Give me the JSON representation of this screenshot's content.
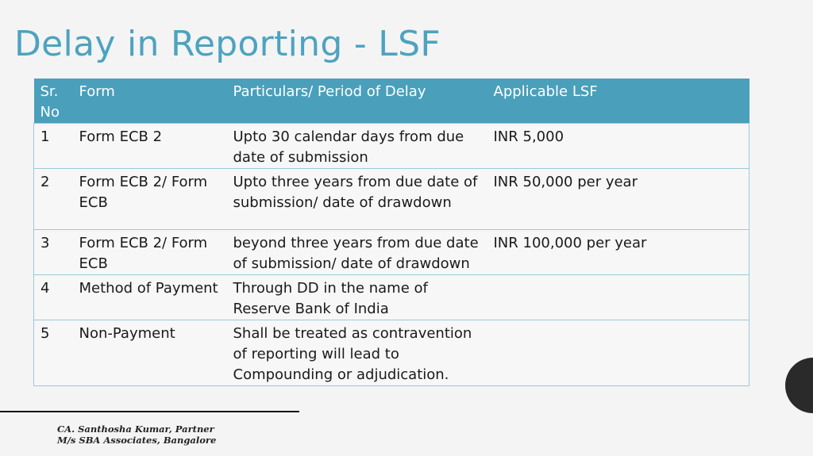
{
  "slide": {
    "title": "Delay in Reporting - LSF"
  },
  "table": {
    "headers": [
      "Sr. No",
      "Form",
      "Particulars/ Period of Delay",
      "Applicable LSF"
    ],
    "rows": [
      [
        "1",
        "Form ECB 2",
        "Upto 30 calendar days from due date of submission",
        "INR 5,000"
      ],
      [
        "2",
        "Form ECB 2/ Form ECB",
        "Upto three years from due date of submission/ date of drawdown",
        "INR 50,000 per year"
      ],
      [
        "3",
        "Form ECB 2/ Form ECB",
        "beyond three years from due date of submission/ date of drawdown",
        "INR 100,000 per year"
      ],
      [
        "4",
        "Method of Payment",
        "Through DD in the name of Reserve Bank of India",
        ""
      ],
      [
        "5",
        "Non-Payment",
        "Shall be treated as contravention of reporting will lead to Compounding or adjudication.",
        ""
      ]
    ]
  },
  "footer": {
    "line1": "CA. Santhosha Kumar, Partner",
    "line2": "M/s SBA Associates, Bangalore"
  },
  "colors": {
    "title": "#4da3bf",
    "header_bg": "#4a9fbb",
    "border": "#9cc9d9"
  }
}
